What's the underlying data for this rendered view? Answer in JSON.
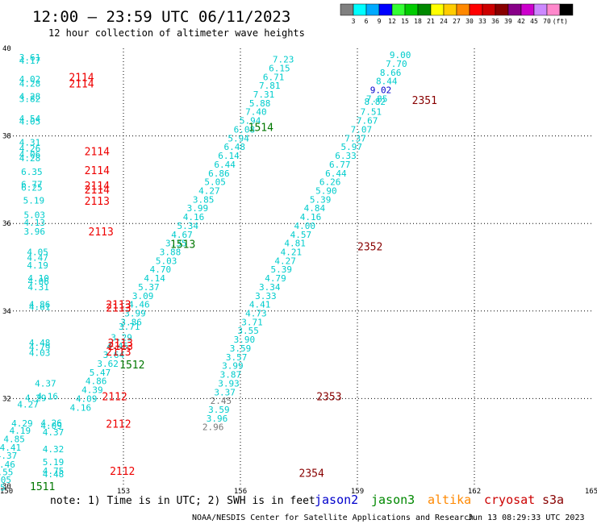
{
  "header": {
    "title": "12:00 – 23:59 UTC 06/11/2023",
    "subtitle": "12 hour collection of altimeter wave heights"
  },
  "colorbar": {
    "labels": [
      "3",
      "6",
      "9",
      "12",
      "15",
      "18",
      "21",
      "24",
      "27",
      "30",
      "33",
      "36",
      "39",
      "42",
      "45",
      "70"
    ],
    "unit": "(ft)",
    "colors": [
      "#808080",
      "#00ffff",
      "#00aaff",
      "#0000ff",
      "#33ff33",
      "#00cc00",
      "#008800",
      "#ffff00",
      "#ffcc00",
      "#ff8800",
      "#ff0000",
      "#cc0000",
      "#880000",
      "#880088",
      "#cc00cc",
      "#cc88ff",
      "#ff88cc",
      "#000000"
    ]
  },
  "notes": {
    "text": "note:  1) Time is in UTC; 2) SWH is in feet",
    "satellites": [
      {
        "name": "jason2",
        "color": "#0000cc"
      },
      {
        "name": "jason3",
        "color": "#008800"
      },
      {
        "name": "altika",
        "color": "#ff8800"
      },
      {
        "name": "cryosat",
        "color": "#cc0000"
      },
      {
        "name": "s3a",
        "color": "#880000"
      }
    ]
  },
  "footer": {
    "left": "NOAA/NESDIS Center for Satellite Applications and Research",
    "right": "Jun 13 08:29:33 UTC 2023"
  },
  "chart_data": {
    "type": "scatter",
    "xlim": [
      150,
      165
    ],
    "ylim": [
      30,
      40
    ],
    "x_ticks": [
      "150",
      "153",
      "156",
      "159",
      "162",
      "165"
    ],
    "y_ticks": [
      "30",
      "32",
      "34",
      "36",
      "38",
      "40"
    ],
    "grid": true,
    "point_colors": {
      "cyan": "#00cccc",
      "gray": "#777777",
      "blue": "#0000cc"
    },
    "pass_colors": {
      "red": "#ee0000",
      "green": "#007700",
      "darkred": "#880000"
    },
    "points": [
      {
        "x": 150.6,
        "y": 39.8,
        "v": "3.61",
        "c": "cyan"
      },
      {
        "x": 150.6,
        "y": 39.72,
        "v": "4.17",
        "c": "cyan"
      },
      {
        "x": 150.6,
        "y": 39.3,
        "v": "4.02",
        "c": "cyan"
      },
      {
        "x": 150.6,
        "y": 39.2,
        "v": "4.28",
        "c": "cyan"
      },
      {
        "x": 150.6,
        "y": 38.9,
        "v": "4.28",
        "c": "cyan"
      },
      {
        "x": 150.6,
        "y": 38.85,
        "v": "3.82",
        "c": "cyan"
      },
      {
        "x": 150.6,
        "y": 38.4,
        "v": "4.54",
        "c": "cyan"
      },
      {
        "x": 150.6,
        "y": 38.33,
        "v": "4.05",
        "c": "cyan"
      },
      {
        "x": 150.6,
        "y": 37.85,
        "v": "4.31",
        "c": "cyan"
      },
      {
        "x": 150.6,
        "y": 37.72,
        "v": "4.26",
        "c": "cyan"
      },
      {
        "x": 150.6,
        "y": 37.58,
        "v": "4.06",
        "c": "cyan"
      },
      {
        "x": 150.6,
        "y": 37.5,
        "v": "4.28",
        "c": "cyan"
      },
      {
        "x": 150.65,
        "y": 37.18,
        "v": "6.35",
        "c": "cyan"
      },
      {
        "x": 150.65,
        "y": 36.9,
        "v": "6.77",
        "c": "cyan"
      },
      {
        "x": 150.65,
        "y": 36.82,
        "v": "6.25",
        "c": "cyan"
      },
      {
        "x": 150.7,
        "y": 36.53,
        "v": "5.19",
        "c": "cyan"
      },
      {
        "x": 150.72,
        "y": 36.2,
        "v": "5.03",
        "c": "cyan"
      },
      {
        "x": 150.72,
        "y": 36.02,
        "v": "4.13",
        "c": "cyan"
      },
      {
        "x": 150.72,
        "y": 35.82,
        "v": "3.96",
        "c": "cyan"
      },
      {
        "x": 150.8,
        "y": 35.35,
        "v": "4.05",
        "c": "cyan"
      },
      {
        "x": 150.8,
        "y": 35.22,
        "v": "4.47",
        "c": "cyan"
      },
      {
        "x": 150.8,
        "y": 35.05,
        "v": "4.19",
        "c": "cyan"
      },
      {
        "x": 150.82,
        "y": 34.75,
        "v": "4.10",
        "c": "cyan"
      },
      {
        "x": 150.82,
        "y": 34.68,
        "v": "4.06",
        "c": "cyan"
      },
      {
        "x": 150.82,
        "y": 34.55,
        "v": "4.31",
        "c": "cyan"
      },
      {
        "x": 150.85,
        "y": 34.15,
        "v": "4.86",
        "c": "cyan"
      },
      {
        "x": 150.85,
        "y": 34.1,
        "v": "4.61",
        "c": "cyan"
      },
      {
        "x": 150.85,
        "y": 33.28,
        "v": "4.48",
        "c": "cyan"
      },
      {
        "x": 150.85,
        "y": 33.18,
        "v": "4.79",
        "c": "cyan"
      },
      {
        "x": 150.85,
        "y": 33.05,
        "v": "4.03",
        "c": "cyan"
      },
      {
        "x": 151.0,
        "y": 32.35,
        "v": "4.37",
        "c": "cyan"
      },
      {
        "x": 150.75,
        "y": 32.02,
        "v": "4.29",
        "c": "cyan"
      },
      {
        "x": 150.55,
        "y": 31.87,
        "v": "4.27",
        "c": "cyan"
      },
      {
        "x": 150.4,
        "y": 31.44,
        "v": "4.29",
        "c": "cyan"
      },
      {
        "x": 150.35,
        "y": 31.27,
        "v": "4.19",
        "c": "cyan"
      },
      {
        "x": 150.2,
        "y": 31.08,
        "v": "4.85",
        "c": "cyan"
      },
      {
        "x": 150.1,
        "y": 30.88,
        "v": "4.41",
        "c": "cyan"
      },
      {
        "x": 150.0,
        "y": 30.7,
        "v": "4.37",
        "c": "cyan"
      },
      {
        "x": 149.95,
        "y": 30.5,
        "v": "4.46",
        "c": "cyan"
      },
      {
        "x": 149.9,
        "y": 30.32,
        "v": "4.55",
        "c": "cyan"
      },
      {
        "x": 149.85,
        "y": 30.15,
        "v": "5.05",
        "c": "cyan"
      },
      {
        "x": 149.7,
        "y": 29.97,
        "v": "5.15",
        "c": "cyan"
      },
      {
        "x": 151.05,
        "y": 32.05,
        "v": "4.16",
        "c": "cyan"
      },
      {
        "x": 151.15,
        "y": 31.45,
        "v": "4.26",
        "c": "cyan"
      },
      {
        "x": 151.15,
        "y": 31.38,
        "v": "4.09",
        "c": "cyan"
      },
      {
        "x": 151.2,
        "y": 31.23,
        "v": "4.37",
        "c": "cyan"
      },
      {
        "x": 151.2,
        "y": 30.85,
        "v": "4.32",
        "c": "cyan"
      },
      {
        "x": 151.2,
        "y": 30.55,
        "v": "5.19",
        "c": "cyan"
      },
      {
        "x": 151.2,
        "y": 30.35,
        "v": "4.75",
        "c": "cyan"
      },
      {
        "x": 151.2,
        "y": 30.28,
        "v": "4.48",
        "c": "cyan"
      },
      {
        "x": 157.1,
        "y": 39.75,
        "v": "7.23",
        "c": "cyan"
      },
      {
        "x": 157.0,
        "y": 39.55,
        "v": "6.15",
        "c": "cyan"
      },
      {
        "x": 156.85,
        "y": 39.35,
        "v": "6.71",
        "c": "cyan"
      },
      {
        "x": 156.75,
        "y": 39.15,
        "v": "7.81",
        "c": "cyan"
      },
      {
        "x": 156.6,
        "y": 38.95,
        "v": "7.31",
        "c": "cyan"
      },
      {
        "x": 156.5,
        "y": 38.75,
        "v": "5.88",
        "c": "cyan"
      },
      {
        "x": 156.4,
        "y": 38.55,
        "v": "7.40",
        "c": "cyan"
      },
      {
        "x": 156.25,
        "y": 38.35,
        "v": "5.94",
        "c": "cyan"
      },
      {
        "x": 156.1,
        "y": 38.15,
        "v": "6.08",
        "c": "cyan"
      },
      {
        "x": 155.95,
        "y": 37.95,
        "v": "5.94",
        "c": "cyan"
      },
      {
        "x": 155.85,
        "y": 37.75,
        "v": "6.48",
        "c": "cyan"
      },
      {
        "x": 155.7,
        "y": 37.55,
        "v": "6.14",
        "c": "cyan"
      },
      {
        "x": 155.6,
        "y": 37.35,
        "v": "6.44",
        "c": "cyan"
      },
      {
        "x": 155.45,
        "y": 37.15,
        "v": "6.86",
        "c": "cyan"
      },
      {
        "x": 155.35,
        "y": 36.95,
        "v": "5.05",
        "c": "cyan"
      },
      {
        "x": 155.2,
        "y": 36.75,
        "v": "4.27",
        "c": "cyan"
      },
      {
        "x": 155.05,
        "y": 36.55,
        "v": "3.85",
        "c": "cyan"
      },
      {
        "x": 154.9,
        "y": 36.35,
        "v": "3.99",
        "c": "cyan"
      },
      {
        "x": 154.8,
        "y": 36.15,
        "v": "4.16",
        "c": "cyan"
      },
      {
        "x": 154.65,
        "y": 35.95,
        "v": "5.34",
        "c": "cyan"
      },
      {
        "x": 154.5,
        "y": 35.75,
        "v": "4.67",
        "c": "cyan"
      },
      {
        "x": 154.35,
        "y": 35.55,
        "v": "3.35",
        "c": "cyan"
      },
      {
        "x": 154.2,
        "y": 35.35,
        "v": "3.88",
        "c": "cyan"
      },
      {
        "x": 154.1,
        "y": 35.15,
        "v": "5.03",
        "c": "cyan"
      },
      {
        "x": 153.95,
        "y": 34.95,
        "v": "4.70",
        "c": "cyan"
      },
      {
        "x": 153.8,
        "y": 34.75,
        "v": "4.14",
        "c": "cyan"
      },
      {
        "x": 153.65,
        "y": 34.55,
        "v": "5.37",
        "c": "cyan"
      },
      {
        "x": 153.5,
        "y": 34.35,
        "v": "3.09",
        "c": "cyan"
      },
      {
        "x": 153.4,
        "y": 34.15,
        "v": "4.46",
        "c": "cyan"
      },
      {
        "x": 153.3,
        "y": 33.95,
        "v": "3.99",
        "c": "cyan"
      },
      {
        "x": 153.2,
        "y": 33.75,
        "v": "3.86",
        "c": "cyan"
      },
      {
        "x": 153.15,
        "y": 33.65,
        "v": "3.71",
        "c": "cyan"
      },
      {
        "x": 152.95,
        "y": 33.4,
        "v": "3.29",
        "c": "cyan"
      },
      {
        "x": 152.85,
        "y": 33.2,
        "v": "4.45",
        "c": "cyan"
      },
      {
        "x": 152.75,
        "y": 33.0,
        "v": "3.64",
        "c": "cyan"
      },
      {
        "x": 152.6,
        "y": 32.8,
        "v": "3.62",
        "c": "cyan"
      },
      {
        "x": 152.4,
        "y": 32.6,
        "v": "5.47",
        "c": "cyan"
      },
      {
        "x": 152.3,
        "y": 32.4,
        "v": "4.86",
        "c": "cyan"
      },
      {
        "x": 152.2,
        "y": 32.2,
        "v": "4.39",
        "c": "cyan"
      },
      {
        "x": 152.05,
        "y": 32.0,
        "v": "4.09",
        "c": "cyan"
      },
      {
        "x": 151.9,
        "y": 31.8,
        "v": "4.16",
        "c": "cyan"
      },
      {
        "x": 160.1,
        "y": 39.85,
        "v": "9.00",
        "c": "cyan"
      },
      {
        "x": 160.0,
        "y": 39.65,
        "v": "7.70",
        "c": "cyan"
      },
      {
        "x": 159.85,
        "y": 39.45,
        "v": "8.66",
        "c": "cyan"
      },
      {
        "x": 159.75,
        "y": 39.25,
        "v": "8.44",
        "c": "cyan"
      },
      {
        "x": 159.6,
        "y": 39.05,
        "v": "9.02",
        "c": "blue"
      },
      {
        "x": 159.5,
        "y": 38.85,
        "v": "7.85",
        "c": "cyan"
      },
      {
        "x": 159.45,
        "y": 38.78,
        "v": "8.82",
        "c": "cyan"
      },
      {
        "x": 159.35,
        "y": 38.55,
        "v": "7.51",
        "c": "cyan"
      },
      {
        "x": 159.25,
        "y": 38.35,
        "v": "7.67",
        "c": "cyan"
      },
      {
        "x": 159.1,
        "y": 38.15,
        "v": "7.07",
        "c": "cyan"
      },
      {
        "x": 158.95,
        "y": 37.95,
        "v": "7.37",
        "c": "cyan"
      },
      {
        "x": 158.85,
        "y": 37.75,
        "v": "5.97",
        "c": "cyan"
      },
      {
        "x": 158.7,
        "y": 37.55,
        "v": "6.33",
        "c": "cyan"
      },
      {
        "x": 158.55,
        "y": 37.35,
        "v": "6.77",
        "c": "cyan"
      },
      {
        "x": 158.45,
        "y": 37.15,
        "v": "6.44",
        "c": "cyan"
      },
      {
        "x": 158.3,
        "y": 36.95,
        "v": "6.26",
        "c": "cyan"
      },
      {
        "x": 158.2,
        "y": 36.75,
        "v": "5.90",
        "c": "cyan"
      },
      {
        "x": 158.05,
        "y": 36.55,
        "v": "5.39",
        "c": "cyan"
      },
      {
        "x": 157.9,
        "y": 36.35,
        "v": "4.84",
        "c": "cyan"
      },
      {
        "x": 157.8,
        "y": 36.15,
        "v": "4.16",
        "c": "cyan"
      },
      {
        "x": 157.65,
        "y": 35.95,
        "v": "4.00",
        "c": "cyan"
      },
      {
        "x": 157.55,
        "y": 35.75,
        "v": "4.57",
        "c": "cyan"
      },
      {
        "x": 157.4,
        "y": 35.55,
        "v": "4.81",
        "c": "cyan"
      },
      {
        "x": 157.3,
        "y": 35.35,
        "v": "4.21",
        "c": "cyan"
      },
      {
        "x": 157.15,
        "y": 35.15,
        "v": "4.27",
        "c": "cyan"
      },
      {
        "x": 157.05,
        "y": 34.95,
        "v": "5.39",
        "c": "cyan"
      },
      {
        "x": 156.9,
        "y": 34.75,
        "v": "4.79",
        "c": "cyan"
      },
      {
        "x": 156.75,
        "y": 34.55,
        "v": "3.34",
        "c": "cyan"
      },
      {
        "x": 156.65,
        "y": 34.35,
        "v": "3.33",
        "c": "cyan"
      },
      {
        "x": 156.5,
        "y": 34.15,
        "v": "4.41",
        "c": "cyan"
      },
      {
        "x": 156.4,
        "y": 33.95,
        "v": "4.73",
        "c": "cyan"
      },
      {
        "x": 156.3,
        "y": 33.75,
        "v": "3.71",
        "c": "cyan"
      },
      {
        "x": 156.2,
        "y": 33.55,
        "v": "3.55",
        "c": "cyan"
      },
      {
        "x": 156.1,
        "y": 33.35,
        "v": "3.90",
        "c": "cyan"
      },
      {
        "x": 156.0,
        "y": 33.15,
        "v": "3.59",
        "c": "cyan"
      },
      {
        "x": 155.9,
        "y": 32.95,
        "v": "3.57",
        "c": "cyan"
      },
      {
        "x": 155.8,
        "y": 32.75,
        "v": "3.99",
        "c": "cyan"
      },
      {
        "x": 155.75,
        "y": 32.55,
        "v": "3.87",
        "c": "cyan"
      },
      {
        "x": 155.7,
        "y": 32.35,
        "v": "3.93",
        "c": "cyan"
      },
      {
        "x": 155.6,
        "y": 32.15,
        "v": "3.37",
        "c": "cyan"
      },
      {
        "x": 155.5,
        "y": 31.95,
        "v": "2.45",
        "c": "gray"
      },
      {
        "x": 155.45,
        "y": 31.75,
        "v": "3.59",
        "c": "cyan"
      },
      {
        "x": 155.4,
        "y": 31.55,
        "v": "3.96",
        "c": "cyan"
      },
      {
        "x": 155.3,
        "y": 31.35,
        "v": "2.96",
        "c": "gray"
      }
    ],
    "passes": [
      {
        "x": 151.6,
        "y": 39.35,
        "label": "2114",
        "c": "red"
      },
      {
        "x": 151.6,
        "y": 39.2,
        "label": "2114",
        "c": "red"
      },
      {
        "x": 152.0,
        "y": 37.65,
        "label": "2114",
        "c": "red"
      },
      {
        "x": 152.0,
        "y": 37.22,
        "label": "2114",
        "c": "red"
      },
      {
        "x": 152.0,
        "y": 36.87,
        "label": "2114",
        "c": "red"
      },
      {
        "x": 152.0,
        "y": 36.78,
        "label": "2114",
        "c": "red"
      },
      {
        "x": 152.0,
        "y": 36.52,
        "label": "2113",
        "c": "red"
      },
      {
        "x": 152.1,
        "y": 35.82,
        "label": "2113",
        "c": "red"
      },
      {
        "x": 152.55,
        "y": 34.15,
        "label": "2113",
        "c": "red"
      },
      {
        "x": 152.55,
        "y": 34.08,
        "label": "2113",
        "c": "red"
      },
      {
        "x": 152.6,
        "y": 33.28,
        "label": "2113",
        "c": "red"
      },
      {
        "x": 152.6,
        "y": 33.2,
        "label": "2113",
        "c": "red"
      },
      {
        "x": 152.55,
        "y": 33.08,
        "label": "2113",
        "c": "red"
      },
      {
        "x": 152.45,
        "y": 32.05,
        "label": "2112",
        "c": "red"
      },
      {
        "x": 152.55,
        "y": 31.43,
        "label": "2112",
        "c": "red"
      },
      {
        "x": 152.65,
        "y": 30.35,
        "label": "2112",
        "c": "red"
      },
      {
        "x": 156.2,
        "y": 38.2,
        "label": "1514",
        "c": "green"
      },
      {
        "x": 154.2,
        "y": 35.53,
        "label": "1513",
        "c": "green"
      },
      {
        "x": 152.9,
        "y": 32.78,
        "label": "1512",
        "c": "green"
      },
      {
        "x": 150.6,
        "y": 30.0,
        "label": "1511",
        "c": "green"
      },
      {
        "x": 160.4,
        "y": 38.82,
        "label": "2351",
        "c": "darkred"
      },
      {
        "x": 159.0,
        "y": 35.48,
        "label": "2352",
        "c": "darkred"
      },
      {
        "x": 157.95,
        "y": 32.05,
        "label": "2353",
        "c": "darkred"
      },
      {
        "x": 157.5,
        "y": 30.3,
        "label": "2354",
        "c": "darkred"
      }
    ]
  }
}
